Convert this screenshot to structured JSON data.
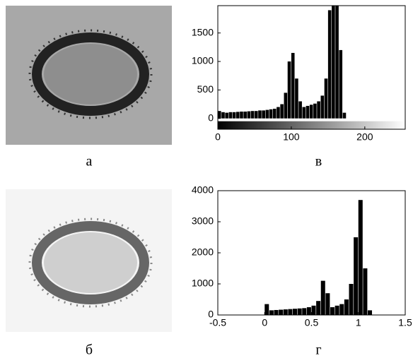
{
  "images": [
    {
      "caption": "а"
    },
    {
      "caption": "б"
    }
  ],
  "chart_data": [
    {
      "type": "histogram",
      "caption": "в",
      "color": "#000000",
      "bins": [
        0,
        5,
        10,
        15,
        20,
        25,
        30,
        35,
        40,
        45,
        50,
        55,
        60,
        65,
        70,
        75,
        80,
        85,
        90,
        95,
        100,
        105,
        110,
        115,
        120,
        125,
        130,
        135,
        140,
        145,
        150,
        155,
        160,
        165,
        170,
        175,
        180,
        185,
        190,
        195,
        200,
        205,
        210,
        215,
        220,
        225,
        230,
        235,
        240,
        245,
        250,
        255
      ],
      "values": [
        130,
        110,
        100,
        110,
        110,
        115,
        120,
        120,
        125,
        130,
        130,
        140,
        140,
        150,
        160,
        170,
        200,
        250,
        450,
        1000,
        1150,
        700,
        300,
        200,
        220,
        240,
        260,
        300,
        400,
        700,
        1900,
        2000,
        2000,
        1200,
        100,
        0,
        0,
        0,
        0,
        0,
        0,
        0,
        0,
        0,
        0,
        0,
        0,
        0,
        0,
        0,
        0
      ],
      "xlim": [
        0,
        255
      ],
      "xticks": [
        0,
        100,
        200
      ],
      "ylim": [
        -190,
        1980
      ],
      "yticks": [
        0,
        500,
        1000,
        1500
      ],
      "colorbar": true
    },
    {
      "type": "histogram",
      "caption": "г",
      "color": "#000000",
      "bins": [
        0,
        0.05,
        0.1,
        0.15,
        0.2,
        0.25,
        0.3,
        0.35,
        0.4,
        0.45,
        0.5,
        0.55,
        0.6,
        0.65,
        0.7,
        0.75,
        0.8,
        0.85,
        0.9,
        0.95,
        1.0,
        1.05,
        1.1,
        1.15
      ],
      "values": [
        350,
        150,
        160,
        170,
        180,
        190,
        200,
        210,
        220,
        250,
        300,
        450,
        1100,
        700,
        250,
        300,
        350,
        500,
        1000,
        2500,
        3700,
        1500,
        150
      ],
      "xlim": [
        -0.5,
        1.5
      ],
      "xticks": [
        -0.5,
        0,
        0.5,
        1,
        1.5
      ],
      "ylim": [
        0,
        4000
      ],
      "yticks": [
        0,
        1000,
        2000,
        3000,
        4000
      ],
      "colorbar": false
    }
  ]
}
